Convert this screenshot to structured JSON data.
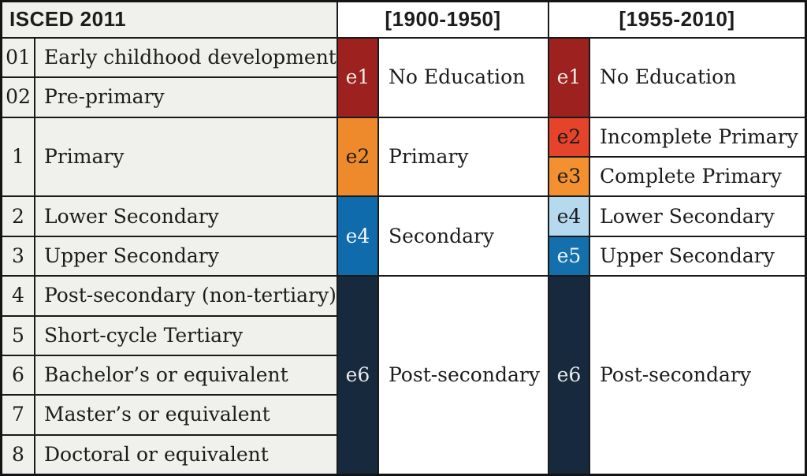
{
  "headers": {
    "isced": "ISCED 2011",
    "period1": "[1900-1950]",
    "period2": "[1955-2010]"
  },
  "isced_rows": [
    {
      "code": "01",
      "label": "Early childhood development"
    },
    {
      "code": "02",
      "label": "Pre-primary"
    },
    {
      "code": "1",
      "label": "Primary"
    },
    {
      "code": "2",
      "label": "Lower Secondary"
    },
    {
      "code": "3",
      "label": "Upper Secondary"
    },
    {
      "code": "4",
      "label": "Post-secondary (non-tertiary)"
    },
    {
      "code": "5",
      "label": "Short-cycle Tertiary"
    },
    {
      "code": "6",
      "label": "Bachelor’s or equivalent"
    },
    {
      "code": "7",
      "label": "Master’s or equivalent"
    },
    {
      "code": "8",
      "label": "Doctoral or equivalent"
    }
  ],
  "period1_groups": [
    {
      "code": "e1",
      "label": "No Education",
      "color": "#9d211e"
    },
    {
      "code": "e2",
      "label": "Primary",
      "color": "#ef8a2c"
    },
    {
      "code": "e4",
      "label": "Secondary",
      "color": "#0f6bab"
    },
    {
      "code": "e6",
      "label": "Post-secondary",
      "color": "#172a3d"
    }
  ],
  "period2_groups": [
    {
      "code": "e1",
      "label": "No Education",
      "color": "#9d211e"
    },
    {
      "code": "e2",
      "label": "Incomplete Primary",
      "color": "#e5432a"
    },
    {
      "code": "e3",
      "label": "Complete Primary",
      "color": "#f39030"
    },
    {
      "code": "e4",
      "label": "Lower Secondary",
      "color": "#b5d9ee"
    },
    {
      "code": "e5",
      "label": "Upper Secondary",
      "color": "#1470ad"
    },
    {
      "code": "e6",
      "label": "Post-secondary",
      "color": "#172a3d"
    }
  ],
  "colors": {
    "row_background": "#f0f0ec",
    "grid_line": "#1a1a1a",
    "text": "#1c1c1c"
  }
}
